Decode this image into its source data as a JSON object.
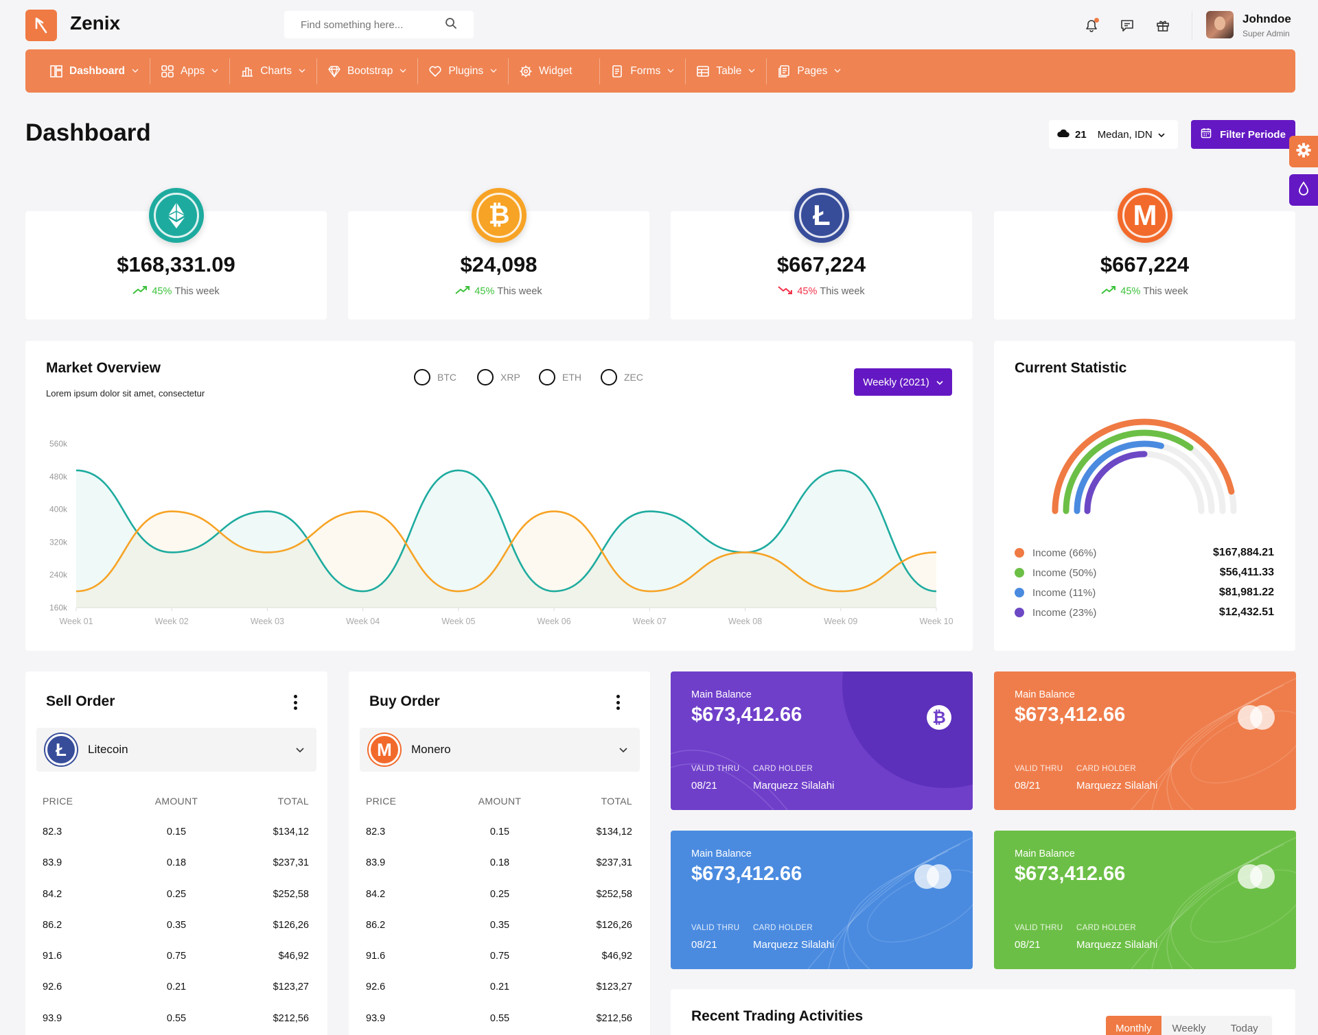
{
  "app": {
    "name": "Zenix",
    "search_placeholder": "Find something here..."
  },
  "user": {
    "name": "Johndoe",
    "role": "Super Admin"
  },
  "nav": [
    {
      "label": "Dashboard",
      "icon": "dashboard-icon",
      "chevron": true
    },
    {
      "label": "Apps",
      "icon": "apps-icon",
      "chevron": true
    },
    {
      "label": "Charts",
      "icon": "charts-icon",
      "chevron": true
    },
    {
      "label": "Bootstrap",
      "icon": "bootstrap-icon",
      "chevron": true
    },
    {
      "label": "Plugins",
      "icon": "plugins-icon",
      "chevron": true
    },
    {
      "label": "Widget",
      "icon": "widget-icon",
      "chevron": false
    },
    {
      "label": "Forms",
      "icon": "forms-icon",
      "chevron": true
    },
    {
      "label": "Table",
      "icon": "table-icon",
      "chevron": true
    },
    {
      "label": "Pages",
      "icon": "pages-icon",
      "chevron": true
    }
  ],
  "page": {
    "title": "Dashboard"
  },
  "weather": {
    "temp": "21",
    "location": "Medan, IDN"
  },
  "filter_button": "Filter Periode",
  "coins": [
    {
      "name": "ethereum-icon",
      "value": "$168,331.09",
      "pct": "45%",
      "trend": "up",
      "suffix": "This week",
      "color": "#1eab9f"
    },
    {
      "name": "bitcoin-icon",
      "value": "$24,098",
      "pct": "45%",
      "trend": "up",
      "suffix": "This week",
      "color": "#f7a325"
    },
    {
      "name": "litecoin-icon",
      "value": "$667,224",
      "pct": "45%",
      "trend": "down",
      "suffix": "This week",
      "color": "#374d9a"
    },
    {
      "name": "monero-icon",
      "value": "$667,224",
      "pct": "45%",
      "trend": "up",
      "suffix": "This week",
      "color": "#f26a2b"
    }
  ],
  "market": {
    "title": "Market Overview",
    "subtitle": "Lorem ipsum dolor sit amet, consectetur",
    "filters": [
      "BTC",
      "XRP",
      "ETH",
      "ZEC"
    ],
    "period": "Weekly (2021)"
  },
  "chart_data": {
    "type": "area",
    "x": [
      "Week 01",
      "Week 02",
      "Week 03",
      "Week 04",
      "Week 05",
      "Week 06",
      "Week 07",
      "Week 08",
      "Week 09",
      "Week 10"
    ],
    "y_ticks": [
      "160k",
      "240k",
      "320k",
      "400k",
      "480k",
      "560k"
    ],
    "ylim": [
      160,
      560
    ],
    "series": [
      {
        "color": "#1eab9f",
        "values": [
          495,
          295,
          395,
          200,
          495,
          200,
          395,
          295,
          495,
          200
        ]
      },
      {
        "color": "#f7a325",
        "values": [
          200,
          395,
          295,
          395,
          200,
          395,
          200,
          295,
          200,
          295
        ]
      }
    ]
  },
  "statistic": {
    "title": "Current Statistic",
    "items": [
      {
        "label": "Income (66%)",
        "amount": "$167,884.21",
        "color": "#ef7a43",
        "fraction": 0.66
      },
      {
        "label": "Income (50%)",
        "amount": "$56,411.33",
        "color": "#6cbf46",
        "fraction": 0.5
      },
      {
        "label": "Income (11%)",
        "amount": "$81,981.22",
        "color": "#4a8be0",
        "fraction": 0.11
      },
      {
        "label": "Income (23%)",
        "amount": "$12,432.51",
        "color": "#6c48c5",
        "fraction": 0.23
      }
    ]
  },
  "sell_order": {
    "title": "Sell Order",
    "coin": "Litecoin",
    "headers": [
      "PRICE",
      "AMOUNT",
      "TOTAL"
    ],
    "rows": [
      [
        "82.3",
        "0.15",
        "$134,12"
      ],
      [
        "83.9",
        "0.18",
        "$237,31"
      ],
      [
        "84.2",
        "0.25",
        "$252,58"
      ],
      [
        "86.2",
        "0.35",
        "$126,26"
      ],
      [
        "91.6",
        "0.75",
        "$46,92"
      ],
      [
        "92.6",
        "0.21",
        "$123,27"
      ],
      [
        "93.9",
        "0.55",
        "$212,56"
      ]
    ]
  },
  "buy_order": {
    "title": "Buy Order",
    "coin": "Monero",
    "headers": [
      "PRICE",
      "AMOUNT",
      "TOTAL"
    ],
    "rows": [
      [
        "82.3",
        "0.15",
        "$134,12"
      ],
      [
        "83.9",
        "0.18",
        "$237,31"
      ],
      [
        "84.2",
        "0.25",
        "$252,58"
      ],
      [
        "86.2",
        "0.35",
        "$126,26"
      ],
      [
        "91.6",
        "0.75",
        "$46,92"
      ],
      [
        "92.6",
        "0.21",
        "$123,27"
      ],
      [
        "93.9",
        "0.55",
        "$212,56"
      ]
    ]
  },
  "balance_cards": [
    {
      "label": "Main Balance",
      "amount": "$673,412.66",
      "valid_label": "VALID THRU",
      "valid": "08/21",
      "holder_label": "CARD HOLDER",
      "holder": "Marquezz Silalahi",
      "color": "#6f3fca",
      "badge": "bitcoin-badge-icon"
    },
    {
      "label": "Main Balance",
      "amount": "$673,412.66",
      "valid_label": "VALID THRU",
      "valid": "08/21",
      "holder_label": "CARD HOLDER",
      "holder": "Marquezz Silalahi",
      "color": "#ef7d4b",
      "badge": "card-circles-icon"
    },
    {
      "label": "Main Balance",
      "amount": "$673,412.66",
      "valid_label": "VALID THRU",
      "valid": "08/21",
      "holder_label": "CARD HOLDER",
      "holder": "Marquezz Silalahi",
      "color": "#4a8be0",
      "badge": "card-circles-icon"
    },
    {
      "label": "Main Balance",
      "amount": "$673,412.66",
      "valid_label": "VALID THRU",
      "valid": "08/21",
      "holder_label": "CARD HOLDER",
      "holder": "Marquezz Silalahi",
      "color": "#6cbf46",
      "badge": "card-circles-icon"
    }
  ],
  "recent": {
    "title": "Recent Trading Activities",
    "tabs": [
      "Monthly",
      "Weekly",
      "Today"
    ],
    "active_tab": "Monthly"
  }
}
